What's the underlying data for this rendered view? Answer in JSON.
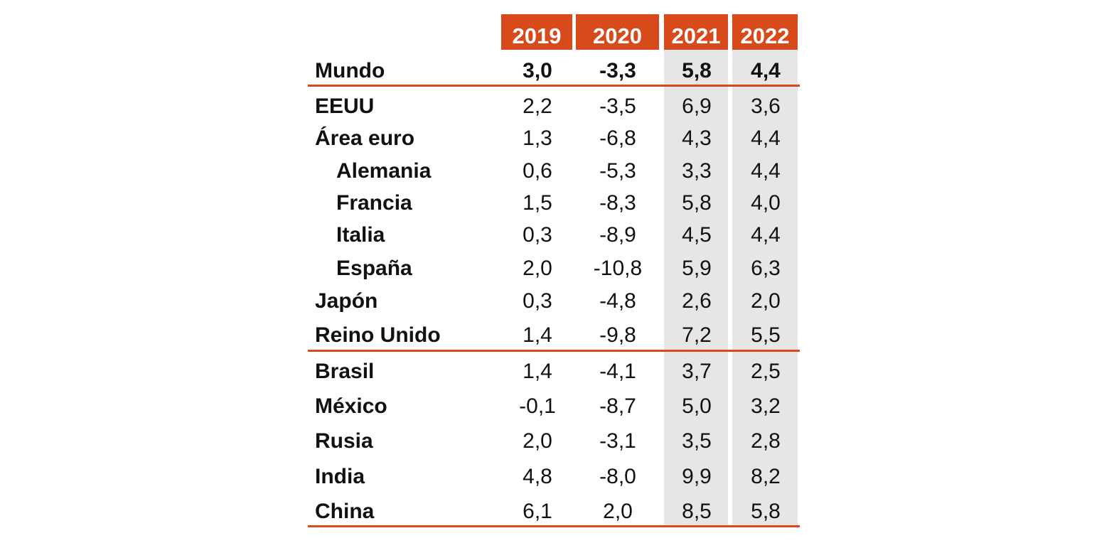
{
  "chart_data": {
    "type": "table",
    "columns": [
      "2019",
      "2020",
      "2021",
      "2022"
    ],
    "rows": [
      {
        "label": "Mundo",
        "values": [
          "3,0",
          "-3,3",
          "5,8",
          "4,4"
        ],
        "bold": true,
        "indent": false
      },
      {
        "label": "EEUU",
        "values": [
          "2,2",
          "-3,5",
          "6,9",
          "3,6"
        ],
        "bold": false,
        "indent": false
      },
      {
        "label": "Área euro",
        "values": [
          "1,3",
          "-6,8",
          "4,3",
          "4,4"
        ],
        "bold": false,
        "indent": false
      },
      {
        "label": "Alemania",
        "values": [
          "0,6",
          "-5,3",
          "3,3",
          "4,4"
        ],
        "bold": false,
        "indent": true
      },
      {
        "label": "Francia",
        "values": [
          "1,5",
          "-8,3",
          "5,8",
          "4,0"
        ],
        "bold": false,
        "indent": true
      },
      {
        "label": "Italia",
        "values": [
          "0,3",
          "-8,9",
          "4,5",
          "4,4"
        ],
        "bold": false,
        "indent": true
      },
      {
        "label": "España",
        "values": [
          "2,0",
          "-10,8",
          "5,9",
          "6,3"
        ],
        "bold": false,
        "indent": true
      },
      {
        "label": "Japón",
        "values": [
          "0,3",
          "-4,8",
          "2,6",
          "2,0"
        ],
        "bold": false,
        "indent": false
      },
      {
        "label": "Reino Unido",
        "values": [
          "1,4",
          "-9,8",
          "7,2",
          "5,5"
        ],
        "bold": false,
        "indent": false
      },
      {
        "label": "Brasil",
        "values": [
          "1,4",
          "-4,1",
          "3,7",
          "2,5"
        ],
        "bold": false,
        "indent": false
      },
      {
        "label": "México",
        "values": [
          "-0,1",
          "-8,7",
          "5,0",
          "3,2"
        ],
        "bold": false,
        "indent": false
      },
      {
        "label": "Rusia",
        "values": [
          "2,0",
          "-3,1",
          "3,5",
          "2,8"
        ],
        "bold": false,
        "indent": false
      },
      {
        "label": "India",
        "values": [
          "4,8",
          "-8,0",
          "9,9",
          "8,2"
        ],
        "bold": false,
        "indent": false
      },
      {
        "label": "China",
        "values": [
          "6,1",
          "2,0",
          "8,5",
          "5,8"
        ],
        "bold": false,
        "indent": false
      }
    ],
    "shaded_columns": [
      "2021",
      "2022"
    ]
  },
  "colors": {
    "header_bg": "#d84a1b",
    "header_text": "#ffffff",
    "rule": "#d84a1b",
    "shade": "#e6e6e6",
    "text": "#111111"
  }
}
